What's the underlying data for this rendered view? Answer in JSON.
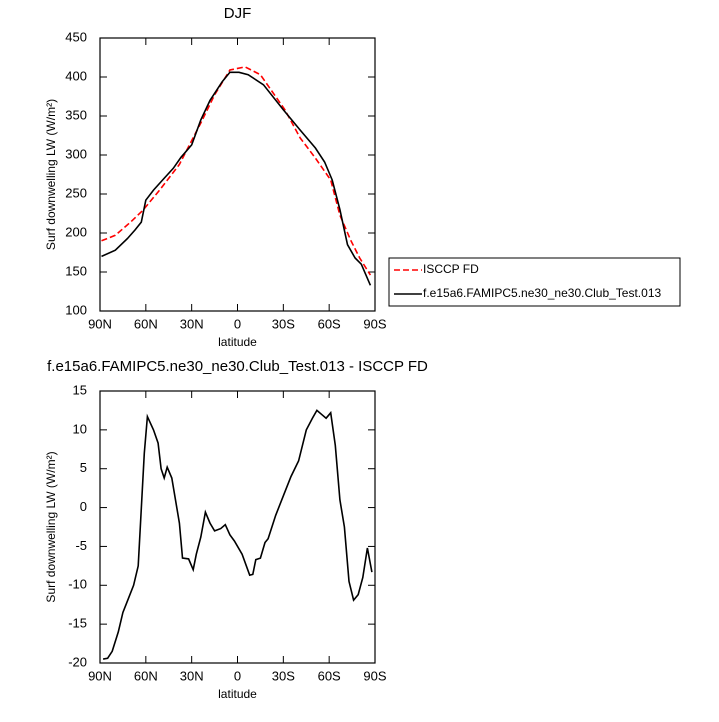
{
  "chart_data": [
    {
      "type": "line",
      "title": "DJF",
      "xlabel": "latitude",
      "ylabel": "Surf downwelling LW (W/m²)",
      "xlim": [
        90,
        -90
      ],
      "xticks": [
        {
          "value": 90,
          "label": "90N"
        },
        {
          "value": 60,
          "label": "60N"
        },
        {
          "value": 30,
          "label": "30N"
        },
        0,
        {
          "value": -30,
          "label": "30S"
        },
        {
          "value": -60,
          "label": "60S"
        },
        {
          "value": -90,
          "label": "90S"
        }
      ],
      "ylim": [
        100,
        450
      ],
      "yticks": [
        100,
        150,
        200,
        250,
        300,
        350,
        400,
        450
      ],
      "legend": "right",
      "series": [
        {
          "name": "ISCCP FD",
          "color": "#ff0000",
          "dashed": true,
          "x": [
            89,
            80,
            70,
            62,
            51,
            38,
            24,
            15,
            5,
            -5,
            -15,
            -31,
            -41,
            -51,
            -61,
            -67,
            -74,
            -80,
            -87
          ],
          "values": [
            190,
            197,
            214,
            229,
            255,
            288,
            341,
            377,
            409,
            413,
            403,
            358,
            322,
            296,
            268,
            223,
            191,
            168,
            146
          ]
        },
        {
          "name": "f.e15a6.FAMIPC5.ne30_ne30.Club_Test.013",
          "color": "#000000",
          "dashed": false,
          "x": [
            89,
            80,
            72,
            67,
            63,
            60,
            55,
            49,
            42,
            37,
            30,
            24,
            18,
            10,
            5,
            -1,
            -7,
            -17,
            -30,
            -41,
            -51,
            -57,
            -62,
            -67,
            -72,
            -77,
            -81,
            -87
          ],
          "values": [
            170,
            178,
            193,
            204,
            214,
            242,
            255,
            268,
            283,
            297,
            313,
            345,
            370,
            394,
            406,
            406,
            403,
            390,
            358,
            332,
            309,
            291,
            268,
            230,
            185,
            168,
            160,
            133
          ]
        }
      ]
    },
    {
      "type": "line",
      "title": "f.e15a6.FAMIPC5.ne30_ne30.Club_Test.013 - ISCCP FD",
      "xlabel": "latitude",
      "ylabel": "Surf downwelling LW (W/m²)",
      "xlim": [
        90,
        -90
      ],
      "xticks": [
        {
          "value": 90,
          "label": "90N"
        },
        {
          "value": 60,
          "label": "60N"
        },
        {
          "value": 30,
          "label": "30N"
        },
        0,
        {
          "value": -30,
          "label": "30S"
        },
        {
          "value": -60,
          "label": "60S"
        },
        {
          "value": -90,
          "label": "90S"
        }
      ],
      "ylim": [
        -20,
        15
      ],
      "yticks": [
        -20,
        -15,
        -10,
        -5,
        0,
        5,
        10,
        15
      ],
      "series": [
        {
          "color": "#000000",
          "dashed": false,
          "x": [
            88,
            85,
            82,
            78,
            75,
            72,
            68,
            65,
            61,
            59,
            55,
            52,
            50,
            48,
            46,
            43,
            38,
            36,
            32,
            29,
            27,
            24,
            21,
            18,
            15,
            11,
            8,
            5,
            2,
            -3,
            -8,
            -10,
            -12,
            -15,
            -18,
            -20,
            -25,
            -30,
            -35,
            -40,
            -45,
            -49,
            -52,
            -55,
            -58,
            -61,
            -64,
            -67,
            -70,
            -73,
            -76,
            -79,
            -82,
            -85,
            -88
          ],
          "values": [
            -19.5,
            -19.4,
            -18.5,
            -16,
            -13.5,
            -12,
            -10,
            -7.5,
            7,
            11.7,
            10,
            8.3,
            5,
            3.8,
            5.2,
            3.8,
            -2,
            -6.5,
            -6.6,
            -8,
            -6,
            -3.8,
            -0.6,
            -2,
            -3,
            -2.7,
            -2.2,
            -3.5,
            -4.3,
            -6,
            -8.7,
            -8.6,
            -6.7,
            -6.5,
            -4.5,
            -4,
            -1,
            1.5,
            4,
            6,
            10,
            11.5,
            12.5,
            12,
            11.5,
            12.2,
            8,
            1,
            -2.5,
            -9.5,
            -11.9,
            -11.2,
            -9,
            -5.2,
            -8.3
          ]
        }
      ]
    }
  ]
}
